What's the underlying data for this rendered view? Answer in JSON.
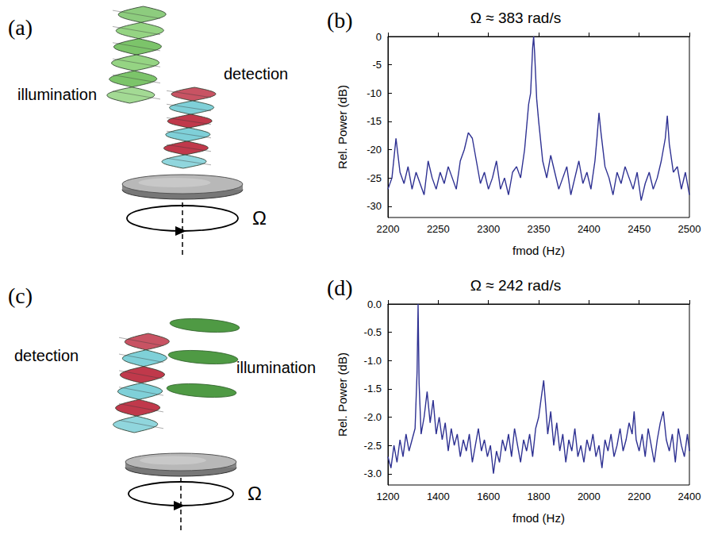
{
  "diagrams": [
    {
      "panel": "(a)",
      "illumination": "illumination",
      "detection": "detection",
      "rotation": "Ω"
    },
    {
      "panel": "(c)",
      "illumination": "illumination",
      "detection": "detection",
      "rotation": "Ω"
    }
  ],
  "chart_data": [
    {
      "panel": "(b)",
      "type": "line",
      "title": "Ω ≈ 383 rad/s",
      "x_label": "fmod (Hz)",
      "y_label": "Rel. Power (dB)",
      "color": "#2e3192",
      "marker": "none",
      "grid": false,
      "xlim": [
        2200,
        2500
      ],
      "xticks": [
        2200,
        2250,
        2300,
        2350,
        2400,
        2450,
        2500
      ],
      "ylim": [
        -32,
        0
      ],
      "yticks": [
        0,
        -5,
        -10,
        -15,
        -20,
        -25,
        -30
      ],
      "x": [
        2200,
        2204,
        2208,
        2212,
        2216,
        2220,
        2224,
        2228,
        2232,
        2236,
        2240,
        2244,
        2248,
        2252,
        2256,
        2260,
        2264,
        2268,
        2272,
        2276,
        2280,
        2284,
        2288,
        2292,
        2296,
        2300,
        2304,
        2308,
        2312,
        2316,
        2320,
        2324,
        2328,
        2332,
        2336,
        2340,
        2342,
        2344,
        2345,
        2346,
        2348,
        2350,
        2354,
        2358,
        2362,
        2366,
        2370,
        2374,
        2378,
        2382,
        2386,
        2390,
        2394,
        2398,
        2402,
        2406,
        2408,
        2410,
        2412,
        2416,
        2420,
        2424,
        2428,
        2432,
        2436,
        2440,
        2444,
        2448,
        2452,
        2456,
        2460,
        2464,
        2468,
        2472,
        2476,
        2478,
        2480,
        2484,
        2488,
        2492,
        2496,
        2500
      ],
      "values": [
        -27,
        -25,
        -18,
        -24,
        -26,
        -23,
        -27,
        -24,
        -26,
        -28,
        -22,
        -25,
        -27,
        -24,
        -26,
        -23,
        -25,
        -27,
        -22,
        -20,
        -17,
        -18,
        -22,
        -26,
        -24,
        -27,
        -25,
        -22,
        -27,
        -25,
        -28,
        -24,
        -23,
        -25,
        -20,
        -12,
        -10,
        -2,
        0,
        -3,
        -11,
        -15,
        -22,
        -25,
        -21,
        -24,
        -27,
        -25,
        -23,
        -28,
        -25,
        -22,
        -26,
        -24,
        -27,
        -22,
        -18,
        -13.5,
        -17,
        -23,
        -25,
        -28,
        -24,
        -26,
        -23,
        -25,
        -27,
        -24,
        -29,
        -26,
        -24,
        -27,
        -25,
        -22,
        -18,
        -14,
        -19,
        -24,
        -23,
        -27,
        -24,
        -28
      ]
    },
    {
      "panel": "(d)",
      "type": "line",
      "title": "Ω ≈ 242 rad/s",
      "x_label": "fmod (Hz)",
      "y_label": "Rel. Power (dB)",
      "color": "#2e3192",
      "marker": "none",
      "grid": false,
      "xlim": [
        1200,
        2400
      ],
      "xticks": [
        1200,
        1400,
        1600,
        1800,
        2000,
        2200,
        2400
      ],
      "ylim": [
        -3.2,
        0
      ],
      "yticks": [
        {
          "value": 0,
          "label": "0.0"
        },
        {
          "value": -0.5,
          "label": "-0.5"
        },
        {
          "value": -1,
          "label": "-1.0"
        },
        {
          "value": -1.5,
          "label": "-1.5"
        },
        {
          "value": -2,
          "label": "-2.0"
        },
        {
          "value": -2.5,
          "label": "-2.5"
        },
        {
          "value": -3,
          "label": "-3.0"
        }
      ],
      "x": [
        1200,
        1212,
        1224,
        1236,
        1248,
        1260,
        1272,
        1284,
        1296,
        1308,
        1316,
        1320,
        1324,
        1332,
        1344,
        1356,
        1368,
        1380,
        1392,
        1404,
        1416,
        1428,
        1440,
        1452,
        1464,
        1476,
        1488,
        1500,
        1512,
        1524,
        1536,
        1548,
        1560,
        1572,
        1584,
        1596,
        1608,
        1620,
        1632,
        1644,
        1656,
        1668,
        1680,
        1692,
        1704,
        1716,
        1728,
        1740,
        1752,
        1764,
        1776,
        1788,
        1800,
        1812,
        1820,
        1828,
        1836,
        1848,
        1860,
        1872,
        1884,
        1896,
        1908,
        1920,
        1932,
        1944,
        1956,
        1968,
        1980,
        1992,
        2004,
        2016,
        2028,
        2040,
        2052,
        2064,
        2076,
        2088,
        2100,
        2112,
        2124,
        2136,
        2148,
        2160,
        2172,
        2180,
        2188,
        2200,
        2212,
        2224,
        2236,
        2248,
        2260,
        2272,
        2284,
        2296,
        2308,
        2320,
        2332,
        2344,
        2356,
        2368,
        2380,
        2392,
        2400
      ],
      "values": [
        -2.7,
        -2.9,
        -2.5,
        -2.8,
        -2.4,
        -2.7,
        -2.3,
        -2.6,
        -2.4,
        -2.2,
        -1.2,
        0,
        -1.4,
        -2.3,
        -2.0,
        -1.55,
        -2.1,
        -1.7,
        -2.3,
        -2.0,
        -2.4,
        -2.1,
        -2.6,
        -2.2,
        -2.5,
        -2.3,
        -2.7,
        -2.4,
        -2.6,
        -2.3,
        -2.8,
        -2.5,
        -2.2,
        -2.6,
        -2.4,
        -2.7,
        -2.5,
        -3.0,
        -2.6,
        -2.8,
        -2.4,
        -2.6,
        -2.3,
        -2.7,
        -2.2,
        -2.5,
        -2.8,
        -2.4,
        -2.6,
        -2.3,
        -2.7,
        -2.2,
        -2.0,
        -1.6,
        -1.35,
        -1.8,
        -2.3,
        -1.9,
        -2.5,
        -2.1,
        -2.6,
        -2.3,
        -2.8,
        -2.4,
        -2.6,
        -2.2,
        -2.7,
        -2.5,
        -2.8,
        -2.4,
        -2.6,
        -2.3,
        -2.7,
        -2.5,
        -2.9,
        -2.4,
        -2.6,
        -2.3,
        -2.7,
        -2.5,
        -2.2,
        -2.6,
        -2.4,
        -2.1,
        -2.3,
        -1.9,
        -2.4,
        -2.6,
        -2.3,
        -2.7,
        -2.2,
        -2.5,
        -2.8,
        -2.4,
        -2.1,
        -1.9,
        -2.4,
        -2.6,
        -2.3,
        -2.8,
        -2.2,
        -2.5,
        -2.7,
        -2.3,
        -2.6
      ]
    }
  ]
}
